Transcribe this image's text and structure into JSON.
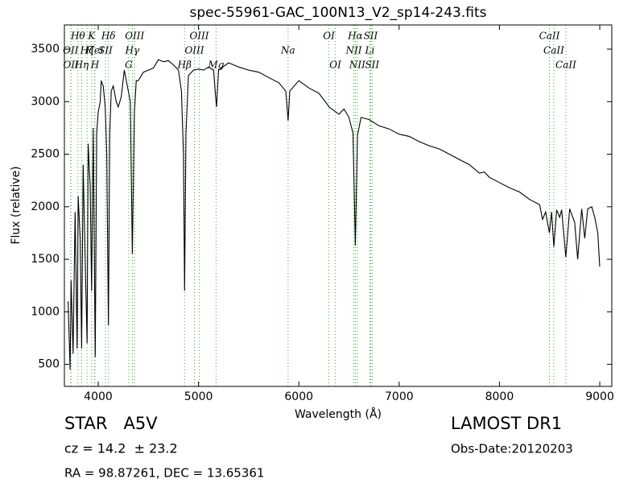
{
  "chart_data": {
    "type": "line",
    "title": "spec-55961-GAC_100N13_V2_sp14-243.fits",
    "x_label": "Wavelength (Å)",
    "y_label": "Flux (relative)",
    "color": "#000000",
    "line_color": "#33aa33",
    "xlim": [
      3663,
      9120
    ],
    "ylim": [
      290,
      3730
    ],
    "xticks": [
      4000,
      5000,
      6000,
      7000,
      8000,
      9000
    ],
    "yticks": [
      500,
      1000,
      1500,
      2000,
      2500,
      3000,
      3500
    ],
    "x": [
      3700,
      3720,
      3730,
      3750,
      3770,
      3790,
      3800,
      3820,
      3835,
      3850,
      3870,
      3889,
      3900,
      3920,
      3934,
      3950,
      3970,
      3985,
      4000,
      4020,
      4030,
      4050,
      4070,
      4085,
      4102,
      4115,
      4130,
      4150,
      4180,
      4200,
      4230,
      4260,
      4280,
      4300,
      4320,
      4340,
      4360,
      4380,
      4400,
      4450,
      4500,
      4550,
      4600,
      4650,
      4700,
      4750,
      4800,
      4830,
      4850,
      4861,
      4875,
      4900,
      4950,
      5000,
      5050,
      5100,
      5150,
      5170,
      5180,
      5200,
      5300,
      5400,
      5500,
      5600,
      5700,
      5800,
      5870,
      5893,
      5910,
      6000,
      6100,
      6200,
      6280,
      6300,
      6400,
      6450,
      6500,
      6540,
      6563,
      6585,
      6620,
      6700,
      6800,
      6900,
      7000,
      7100,
      7200,
      7300,
      7400,
      7500,
      7600,
      7700,
      7800,
      7850,
      7900,
      8000,
      8100,
      8200,
      8300,
      8400,
      8430,
      8460,
      8498,
      8520,
      8542,
      8570,
      8600,
      8620,
      8662,
      8700,
      8750,
      8780,
      8820,
      8850,
      8880,
      8920,
      8950,
      8980,
      9000
    ],
    "values": [
      1100,
      450,
      1300,
      600,
      1950,
      650,
      2100,
      1700,
      650,
      2400,
      1500,
      700,
      2600,
      2200,
      1200,
      2750,
      570,
      2700,
      2900,
      3000,
      3200,
      3150,
      2950,
      2500,
      870,
      2700,
      3100,
      3150,
      3000,
      2950,
      3050,
      3300,
      3200,
      3100,
      3000,
      1550,
      2900,
      3200,
      3200,
      3280,
      3300,
      3320,
      3400,
      3380,
      3390,
      3350,
      3300,
      3100,
      2500,
      1200,
      2700,
      3250,
      3300,
      3310,
      3300,
      3330,
      3300,
      3050,
      2950,
      3300,
      3370,
      3330,
      3300,
      3280,
      3230,
      3180,
      3100,
      2820,
      3100,
      3200,
      3130,
      3080,
      2980,
      2950,
      2880,
      2930,
      2850,
      2700,
      1630,
      2680,
      2850,
      2830,
      2770,
      2740,
      2690,
      2670,
      2620,
      2580,
      2550,
      2500,
      2450,
      2400,
      2320,
      2330,
      2280,
      2230,
      2180,
      2140,
      2070,
      2020,
      1880,
      1950,
      1750,
      1950,
      1620,
      1970,
      1900,
      1970,
      1520,
      1980,
      1850,
      1500,
      1980,
      1700,
      1980,
      2000,
      1900,
      1750,
      1430
    ],
    "spectral_lines": [
      [
        {
          "label": "Hθ",
          "wavelength": 3798
        },
        {
          "label": "K",
          "wavelength": 3934
        },
        {
          "label": "Hδ",
          "wavelength": 4102
        },
        {
          "label": "OIII",
          "wavelength": 4363
        },
        {
          "label": "OIII",
          "wavelength": 5007
        },
        {
          "label": "OI",
          "wavelength": 6300
        },
        {
          "label": "Hα",
          "wavelength": 6563
        },
        {
          "label": "SII",
          "wavelength": 6716
        },
        {
          "label": "CaII",
          "wavelength": 8498
        }
      ],
      [
        {
          "label": "OII",
          "wavelength": 3726
        },
        {
          "label": "Hζ",
          "wavelength": 3889
        },
        {
          "label": "HeI",
          "wavelength": 3965
        },
        {
          "label": "SII",
          "wavelength": 4072
        },
        {
          "label": "Hγ",
          "wavelength": 4340
        },
        {
          "label": "OIII",
          "wavelength": 4959
        },
        {
          "label": "Na",
          "wavelength": 5893
        },
        {
          "label": "NII",
          "wavelength": 6548
        },
        {
          "label": "Li",
          "wavelength": 6708
        },
        {
          "label": "CaII",
          "wavelength": 8542
        }
      ],
      [
        {
          "label": "OII",
          "wavelength": 3729
        },
        {
          "label": "Hη",
          "wavelength": 3835
        },
        {
          "label": "H",
          "wavelength": 3968
        },
        {
          "label": "G",
          "wavelength": 4304
        },
        {
          "label": "Hβ",
          "wavelength": 4861
        },
        {
          "label": "Mg",
          "wavelength": 5175
        },
        {
          "label": "OI",
          "wavelength": 6364
        },
        {
          "label": "NII",
          "wavelength": 6583
        },
        {
          "label": "SII",
          "wavelength": 6731
        },
        {
          "label": "CaII",
          "wavelength": 8662
        }
      ]
    ]
  },
  "footer": {
    "object": "STAR   A5V",
    "survey": "LAMOST DR1",
    "redshift": "cz = 14.2  ± 23.2",
    "obs_date": "Obs-Date:20120203",
    "coords": "RA = 98.87261, DEC = 13.65361"
  }
}
